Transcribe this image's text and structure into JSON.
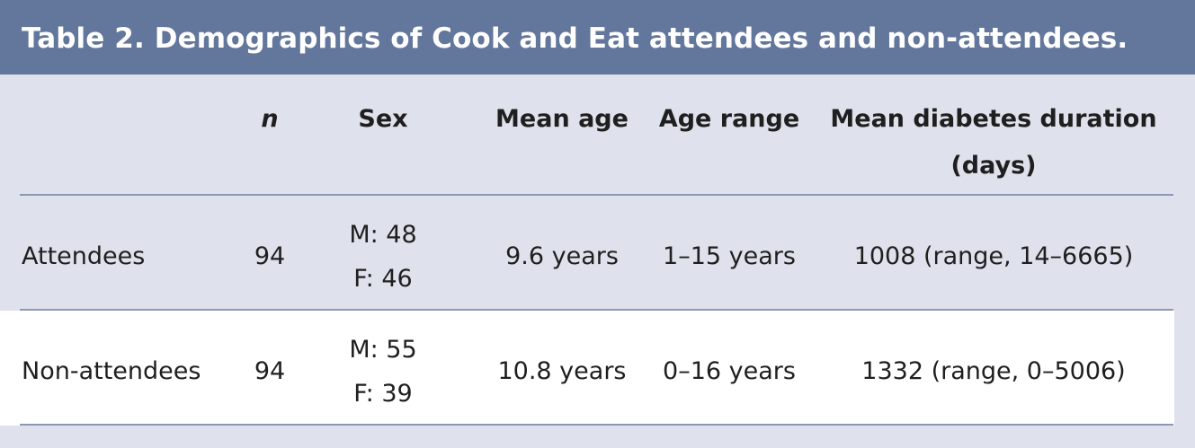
{
  "caption": "Table 2. Demographics of Cook and Eat attendees and non-attendees.",
  "columns": [
    "",
    "n",
    "Sex",
    "Mean age",
    "Age range",
    "Mean diabetes duration (days)"
  ],
  "header": {
    "n": "n",
    "sex": "Sex",
    "mean_age": "Mean age",
    "age_range": "Age range",
    "duration_line1": "Mean diabetes duration",
    "duration_line2": "(days)"
  },
  "rows": [
    {
      "group": "Attendees",
      "n": "94",
      "sex_m": "M: 48",
      "sex_f": "F: 46",
      "mean_age": "9.6 years",
      "age_range": "1–15 years",
      "duration": "1008 (range, 14–6665)"
    },
    {
      "group": "Non-attendees",
      "n": "94",
      "sex_m": "M: 55",
      "sex_f": "F: 39",
      "mean_age": "10.8 years",
      "age_range": "0–16 years",
      "duration": "1332 (range, 0–5006)"
    }
  ]
}
